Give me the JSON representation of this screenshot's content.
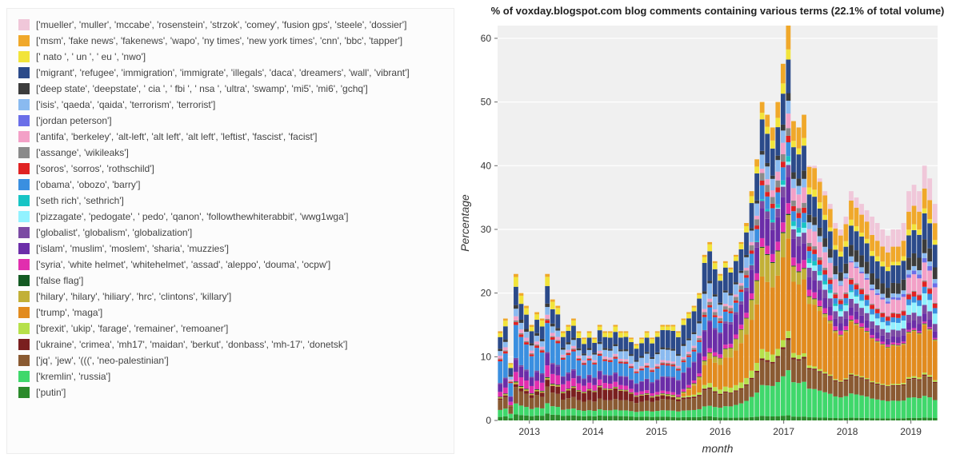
{
  "chart": {
    "type": "stacked-bar",
    "title": "% of voxday.blogspot.com blog comments containing various terms (22.1% of total volume)",
    "title_fontsize": 13,
    "background_color": "#ffffff",
    "panel_background": "#f0f0f0",
    "grid_color": "#ffffff",
    "axis_text_color": "#333333",
    "bar_gap_ratio": 0.12,
    "x": {
      "label": "month",
      "tick_years": [
        2013,
        2014,
        2015,
        2016,
        2017,
        2018,
        2019
      ],
      "start_year": 2012.5,
      "end_year": 2019.42,
      "n_bars": 84
    },
    "y": {
      "label": "Percentage",
      "min": 0,
      "max": 62,
      "ticks": [
        0,
        10,
        20,
        30,
        40,
        50,
        60
      ]
    },
    "series": [
      {
        "id": "putin",
        "color": "#2b8a2b",
        "label": "['putin']"
      },
      {
        "id": "kremlin",
        "color": "#3fd86b",
        "label": "['kremlin', 'russia']"
      },
      {
        "id": "jq",
        "color": "#8a5a32",
        "label": "['jq', 'jew', '(((', 'neo-palestinian']"
      },
      {
        "id": "ukraine",
        "color": "#7a1f1f",
        "label": "['ukraine', 'crimea', 'mh17', 'maidan', 'berkut', 'donbass', 'mh-17', 'donetsk']"
      },
      {
        "id": "brexit",
        "color": "#b6e04a",
        "label": "['brexit', 'ukip', 'farage', 'remainer', 'remoaner']"
      },
      {
        "id": "trump",
        "color": "#e28b1e",
        "label": "['trump', 'maga']"
      },
      {
        "id": "hillary",
        "color": "#c2b037",
        "label": "['hilary', 'hilary', 'hiliary', 'hrc', 'clintons', 'killary']"
      },
      {
        "id": "falseflag",
        "color": "#145a23",
        "label": "['false flag']"
      },
      {
        "id": "syria",
        "color": "#e12eae",
        "label": "['syria', 'white helmet', 'whitehelmet', 'assad', 'aleppo', 'douma', 'ocpw']"
      },
      {
        "id": "islam",
        "color": "#6b2da8",
        "label": "['islam', 'muslim', 'moslem', 'sharia', 'muzzies']"
      },
      {
        "id": "globalist",
        "color": "#7b4aa3",
        "label": "['globalist', 'globalism', 'globalization']"
      },
      {
        "id": "pizzagate",
        "color": "#92f2ff",
        "label": "['pizzagate', 'pedogate', ' pedo', 'qanon', 'followthewhiterabbit', 'wwg1wga']"
      },
      {
        "id": "sethrich",
        "color": "#17c4c4",
        "label": "['seth rich', 'sethrich']"
      },
      {
        "id": "obama",
        "color": "#3a8fe0",
        "label": "['obama', 'obozo', 'barry']"
      },
      {
        "id": "soros",
        "color": "#e02222",
        "label": "['soros', 'sorros', 'rothschild']"
      },
      {
        "id": "assange",
        "color": "#8a8a8a",
        "label": "['assange', 'wikileaks']"
      },
      {
        "id": "antifa",
        "color": "#f3a0c7",
        "label": "['antifa', 'berkeley', 'alt-left', 'alt left', 'alt left', 'leftist', 'fascist', 'facist']"
      },
      {
        "id": "peterson",
        "color": "#6a6ee8",
        "label": "['jordan peterson']"
      },
      {
        "id": "isis",
        "color": "#8abaf0",
        "label": "['isis', 'qaeda', 'qaida', 'terrorism', 'terrorist']"
      },
      {
        "id": "deepstate",
        "color": "#3b3b3b",
        "label": "['deep state', 'deepstate', ' cia ', ' fbi ', ' nsa ', 'ultra', 'swamp', 'mi5', 'mi6', 'gchq']"
      },
      {
        "id": "migrant",
        "color": "#2b4a8a",
        "label": "['migrant', 'refugee', 'immigration', 'immigrate', 'illegals', 'daca', 'dreamers', 'wall', 'vibrant']"
      },
      {
        "id": "nato",
        "color": "#f2e43a",
        "label": "[' nato ', ' un ', ' eu ', 'nwo']"
      },
      {
        "id": "msm",
        "color": "#f0a82a",
        "label": "['msm', 'fake news', 'fakenews', 'wapo', 'ny times', 'new york times', 'cnn', 'bbc', 'tapper']"
      },
      {
        "id": "mueller",
        "color": "#f0c7d9",
        "label": "['mueller', 'muller', 'mccabe', 'rosenstein', 'strzok', 'comey', 'fusion gps', 'steele', 'dossier']"
      }
    ],
    "totals": [
      14,
      16,
      9,
      23,
      20,
      18,
      15,
      17,
      16,
      23,
      19,
      18,
      14,
      15,
      16,
      14,
      13,
      14,
      13,
      15,
      14,
      14,
      15,
      14,
      14,
      13,
      12,
      13,
      14,
      13,
      14,
      15,
      15,
      15,
      14,
      16,
      17,
      18,
      20,
      26,
      28,
      25,
      23,
      25,
      24,
      26,
      28,
      31,
      36,
      41,
      50,
      48,
      46,
      50,
      56,
      62,
      47,
      46,
      48,
      40,
      40,
      38,
      36,
      34,
      31,
      30,
      32,
      36,
      35,
      34,
      33,
      32,
      31,
      30,
      29,
      30,
      30,
      31,
      36,
      37,
      36,
      40,
      38,
      34
    ]
  },
  "legend_box": {
    "background_color": "#fcfcfc",
    "border_color": "#ededed",
    "item_fontsize": 12,
    "swatch_size": 14
  }
}
